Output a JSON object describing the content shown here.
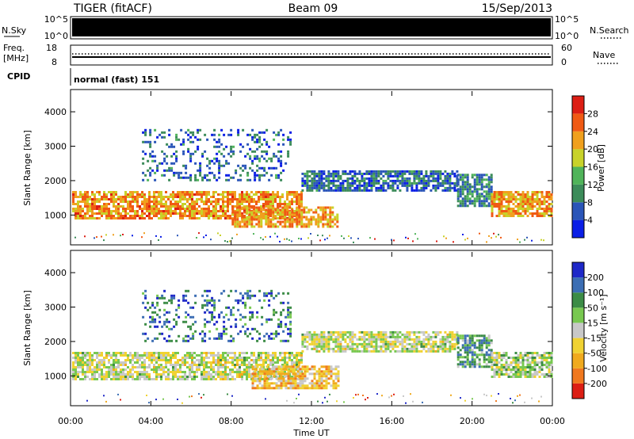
{
  "header": {
    "radar": "TIGER (fitACF)",
    "beam": "Beam 09",
    "date": "15/Sep/2013"
  },
  "top_panels": {
    "nsky_label": "N.Sky",
    "nsky_ticks": [
      "10^5",
      "10^0"
    ],
    "nsearch_label": "N.Search",
    "nsearch_ticks": [
      "10^5",
      "10^0"
    ],
    "freq_label_line1": "Freq.",
    "freq_label_line2": "[MHz]",
    "freq_ticks": [
      "18",
      "8"
    ],
    "nave_label": "Nave",
    "nave_ticks": [
      "60",
      "0"
    ],
    "cpid_label": "CPID",
    "cpid_text": "normal (fast) 151"
  },
  "chart_data": [
    {
      "type": "heatmap",
      "name": "power",
      "ylabel": "Slant Range [km]",
      "xlabel": "",
      "xlim_hours": [
        0,
        24
      ],
      "ylim": [
        180,
        4600
      ],
      "yticks": [
        1000,
        2000,
        3000,
        4000
      ],
      "colorbar": {
        "label": "Power [dB]",
        "ticks": [
          "4",
          "8",
          "12",
          "16",
          "20",
          "24",
          "28"
        ],
        "colors": [
          "#0a1ee6",
          "#2a55b8",
          "#3c8c5a",
          "#50b45a",
          "#c8d22a",
          "#f0a01e",
          "#f05a14",
          "#dc1e14"
        ]
      },
      "regions": [
        {
          "t": [
            0.0,
            11.5
          ],
          "r": [
            900,
            1700
          ],
          "level": 0.72
        },
        {
          "t": [
            8.0,
            13.3
          ],
          "r": [
            650,
            1250
          ],
          "level": 0.68
        },
        {
          "t": [
            11.5,
            19.3
          ],
          "r": [
            1700,
            2300
          ],
          "level": 0.22
        },
        {
          "t": [
            19.3,
            21.0
          ],
          "r": [
            1300,
            2200
          ],
          "level": 0.3
        },
        {
          "t": [
            21.0,
            24.0
          ],
          "r": [
            1000,
            1700
          ],
          "level": 0.7
        },
        {
          "t": [
            3.5,
            11.0
          ],
          "r": [
            2000,
            3500
          ],
          "level": 0.22
        }
      ]
    },
    {
      "type": "heatmap",
      "name": "velocity",
      "ylabel": "Slant Range [km]",
      "xlabel": "Time UT",
      "xticks": [
        "00:00",
        "04:00",
        "08:00",
        "12:00",
        "16:00",
        "20:00",
        "00:00"
      ],
      "xlim_hours": [
        0,
        24
      ],
      "ylim": [
        180,
        4600
      ],
      "yticks": [
        1000,
        2000,
        3000,
        4000
      ],
      "colorbar": {
        "label": "Velocity [m s⁻¹]",
        "ticks": [
          "200",
          "100",
          "50",
          "15",
          "-15",
          "-50",
          "-100",
          "-200"
        ],
        "colors": [
          "#1e28c8",
          "#3c6eb4",
          "#3c8c46",
          "#78c850",
          "#c8c8c8",
          "#f0d232",
          "#f0aa1e",
          "#f0781e",
          "#dc1e14"
        ]
      },
      "regions": [
        {
          "t": [
            0.0,
            11.5
          ],
          "r": [
            900,
            1700
          ],
          "level": 0.5
        },
        {
          "t": [
            9.0,
            13.3
          ],
          "r": [
            650,
            1300
          ],
          "level": 0.65
        },
        {
          "t": [
            11.5,
            19.3
          ],
          "r": [
            1700,
            2300
          ],
          "level": 0.5
        },
        {
          "t": [
            19.3,
            21.0
          ],
          "r": [
            1300,
            2200
          ],
          "level": 0.3
        },
        {
          "t": [
            21.0,
            24.0
          ],
          "r": [
            1000,
            1700
          ],
          "level": 0.45
        },
        {
          "t": [
            3.5,
            11.0
          ],
          "r": [
            2000,
            3500
          ],
          "level": 0.2
        }
      ]
    }
  ]
}
